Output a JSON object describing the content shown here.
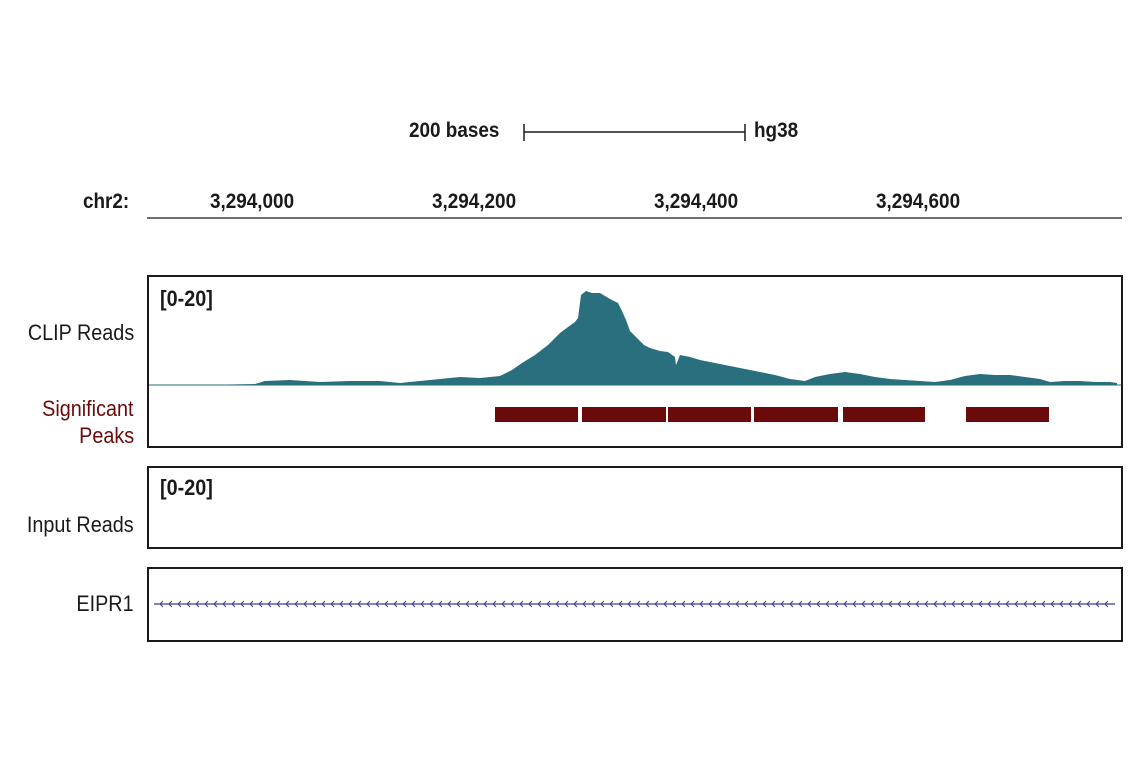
{
  "scale_bar": {
    "label": "200 bases",
    "assembly": "hg38"
  },
  "ruler": {
    "chrom_label": "chr2:",
    "ticks": [
      "3,294,000",
      "3,294,200",
      "3,294,400",
      "3,294,600"
    ]
  },
  "tracks": {
    "clip": {
      "label": "CLIP Reads",
      "range": "[0-20]"
    },
    "peaks": {
      "label_line1": "Significant",
      "label_line2": "Peaks",
      "count": 6
    },
    "input": {
      "label": "Input Reads",
      "range": "[0-20]"
    },
    "gene": {
      "label": "EIPR1",
      "strand": "minus"
    }
  },
  "colors": {
    "coverage": "#2a6f7e",
    "peaks": "#6b0a0a",
    "peaks_label": "#6b0a0a",
    "gene_line": "#3a3f8f",
    "frame": "#1a1a1a"
  }
}
